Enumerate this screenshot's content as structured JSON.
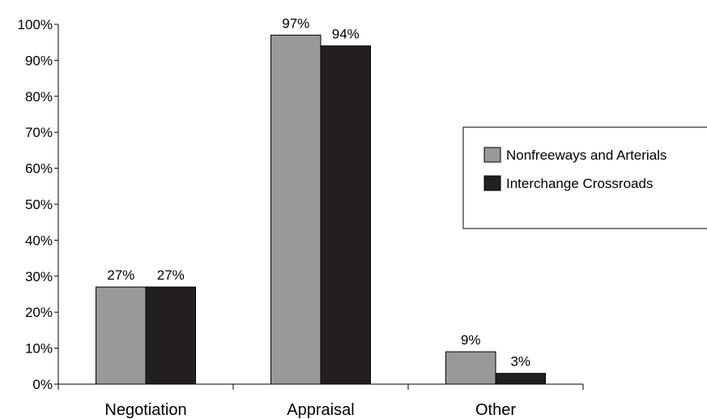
{
  "chart_data": {
    "type": "bar",
    "categories": [
      "Negotiation",
      "Appraisal",
      "Other"
    ],
    "series": [
      {
        "name": "Nonfreeways and Arterials",
        "values": [
          27,
          97,
          9
        ],
        "labels": [
          "27%",
          "97%",
          "9%"
        ],
        "color": "#999999"
      },
      {
        "name": "Interchange Crossroads",
        "values": [
          27,
          94,
          3
        ],
        "labels": [
          "27%",
          "94%",
          "3%"
        ],
        "color": "#231f20"
      }
    ],
    "ylim": [
      0,
      100
    ],
    "yticks": [
      "0%",
      "10%",
      "20%",
      "30%",
      "40%",
      "50%",
      "60%",
      "70%",
      "80%",
      "90%",
      "100%"
    ],
    "grid": false,
    "legend_position": "right"
  }
}
